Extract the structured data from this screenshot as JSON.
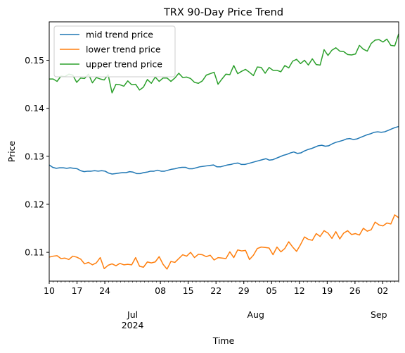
{
  "chart_data": {
    "type": "line",
    "title": "TRX 90-Day Price Trend",
    "xlabel": "Time",
    "ylabel": "Price",
    "x_start": "2024-06-10",
    "x_end": "2024-09-06",
    "xlim": [
      "2024-06-10",
      "2024-09-06"
    ],
    "ylim": [
      0.104,
      0.158
    ],
    "yticks": [
      0.11,
      0.12,
      0.13,
      0.14,
      0.15
    ],
    "ytick_labels": [
      "0.11",
      "0.12",
      "0.13",
      "0.14",
      "0.15"
    ],
    "xticks_day": [
      {
        "date": "2024-06-10",
        "label": "10"
      },
      {
        "date": "2024-06-17",
        "label": "17"
      },
      {
        "date": "2024-06-24",
        "label": "24"
      },
      {
        "date": "2024-07-08",
        "label": "08"
      },
      {
        "date": "2024-07-15",
        "label": "15"
      },
      {
        "date": "2024-07-22",
        "label": "22"
      },
      {
        "date": "2024-07-29",
        "label": "29"
      },
      {
        "date": "2024-08-05",
        "label": "05"
      },
      {
        "date": "2024-08-12",
        "label": "12"
      },
      {
        "date": "2024-08-19",
        "label": "19"
      },
      {
        "date": "2024-08-26",
        "label": "26"
      },
      {
        "date": "2024-09-02",
        "label": "02"
      }
    ],
    "xticks_month": [
      {
        "date": "2024-07-01",
        "label": "Jul",
        "sublabel": "2024"
      },
      {
        "date": "2024-08-01",
        "label": "Aug",
        "sublabel": ""
      },
      {
        "date": "2024-09-01",
        "label": "Sep",
        "sublabel": ""
      }
    ],
    "grid": false,
    "legend_position": "top-left",
    "series": [
      {
        "name": "mid trend price",
        "color": "#1f77b4",
        "values": [
          0.1282,
          0.1277,
          0.1275,
          0.1276,
          0.1276,
          0.1275,
          0.1276,
          0.1275,
          0.1274,
          0.127,
          0.1268,
          0.1269,
          0.1269,
          0.127,
          0.1269,
          0.127,
          0.1269,
          0.1265,
          0.1263,
          0.1264,
          0.1265,
          0.1266,
          0.1266,
          0.1268,
          0.1267,
          0.1264,
          0.1264,
          0.1266,
          0.1267,
          0.1269,
          0.1269,
          0.1271,
          0.1269,
          0.1269,
          0.1271,
          0.1273,
          0.1274,
          0.1276,
          0.1277,
          0.1277,
          0.1274,
          0.1274,
          0.1276,
          0.1278,
          0.1279,
          0.128,
          0.1281,
          0.1282,
          0.1278,
          0.1278,
          0.128,
          0.1282,
          0.1283,
          0.1285,
          0.1286,
          0.1283,
          0.1283,
          0.1285,
          0.1287,
          0.1289,
          0.1291,
          0.1293,
          0.1295,
          0.1292,
          0.1293,
          0.1296,
          0.1299,
          0.1302,
          0.1304,
          0.1307,
          0.1309,
          0.1306,
          0.1307,
          0.1311,
          0.1314,
          0.1316,
          0.1319,
          0.1322,
          0.1323,
          0.1321,
          0.1322,
          0.1326,
          0.1329,
          0.1331,
          0.1333,
          0.1336,
          0.1337,
          0.1335,
          0.1336,
          0.1339,
          0.1342,
          0.1345,
          0.1347,
          0.135,
          0.1351,
          0.135,
          0.1351,
          0.1354,
          0.1357,
          0.136,
          0.1362
        ]
      },
      {
        "name": "lower trend price",
        "color": "#ff7f0e",
        "values": [
          0.109,
          0.1092,
          0.1093,
          0.1087,
          0.1088,
          0.1085,
          0.1092,
          0.109,
          0.1086,
          0.1076,
          0.1079,
          0.1074,
          0.1078,
          0.1089,
          0.1066,
          0.1073,
          0.1076,
          0.1072,
          0.1077,
          0.1074,
          0.1075,
          0.1074,
          0.1089,
          0.1071,
          0.1069,
          0.108,
          0.1078,
          0.108,
          0.1091,
          0.1075,
          0.1065,
          0.1081,
          0.1079,
          0.1087,
          0.1095,
          0.1092,
          0.11,
          0.1089,
          0.1096,
          0.1095,
          0.1091,
          0.1094,
          0.1084,
          0.1089,
          0.1088,
          0.1087,
          0.1101,
          0.1089,
          0.1105,
          0.1103,
          0.1104,
          0.1085,
          0.1094,
          0.1108,
          0.1111,
          0.111,
          0.1109,
          0.1095,
          0.1111,
          0.1101,
          0.1108,
          0.1122,
          0.1111,
          0.1102,
          0.1116,
          0.1132,
          0.1127,
          0.1125,
          0.1139,
          0.1133,
          0.1145,
          0.114,
          0.1129,
          0.1143,
          0.1128,
          0.114,
          0.1145,
          0.1137,
          0.1139,
          0.1136,
          0.115,
          0.1144,
          0.1147,
          0.1163,
          0.1157,
          0.1155,
          0.1161,
          0.1159,
          0.1178,
          0.1172
        ]
      },
      {
        "name": "upper trend price",
        "color": "#2ca02c",
        "values": [
          0.1461,
          0.1461,
          0.1456,
          0.1467,
          0.1466,
          0.1471,
          0.1469,
          0.1454,
          0.1463,
          0.1462,
          0.1471,
          0.1453,
          0.1464,
          0.1461,
          0.1459,
          0.147,
          0.1432,
          0.145,
          0.1449,
          0.1446,
          0.1457,
          0.1449,
          0.145,
          0.1438,
          0.1444,
          0.146,
          0.1452,
          0.1465,
          0.1456,
          0.1463,
          0.1463,
          0.1456,
          0.1463,
          0.1473,
          0.1464,
          0.1465,
          0.1462,
          0.1454,
          0.1452,
          0.1457,
          0.1469,
          0.1472,
          0.1475,
          0.145,
          0.1461,
          0.1471,
          0.147,
          0.1489,
          0.1472,
          0.1477,
          0.1481,
          0.1475,
          0.1468,
          0.1486,
          0.1485,
          0.1473,
          0.1485,
          0.1479,
          0.1479,
          0.1476,
          0.1489,
          0.1484,
          0.1498,
          0.1502,
          0.1493,
          0.15,
          0.149,
          0.1503,
          0.1491,
          0.149,
          0.1522,
          0.151,
          0.1521,
          0.1526,
          0.1519,
          0.1518,
          0.1512,
          0.1511,
          0.1513,
          0.1531,
          0.1523,
          0.1519,
          0.1535,
          0.1542,
          0.1543,
          0.1538,
          0.1544,
          0.1531,
          0.153,
          0.1555
        ]
      }
    ]
  }
}
